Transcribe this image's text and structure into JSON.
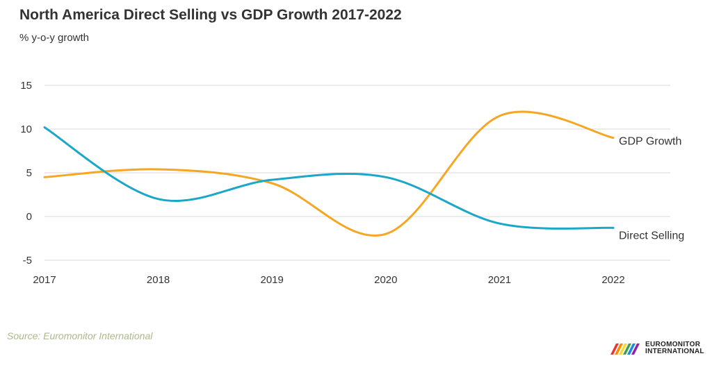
{
  "chart_data": {
    "type": "line",
    "title": "North America Direct Selling vs GDP Growth 2017-2022",
    "subtitle": "% y-o-y growth",
    "xlabel": "",
    "ylabel": "",
    "categories": [
      "2017",
      "2018",
      "2019",
      "2020",
      "2021",
      "2022"
    ],
    "ylim": [
      -5,
      15
    ],
    "yticks": [
      -5,
      0,
      5,
      10,
      15
    ],
    "grid": true,
    "series": [
      {
        "name": "GDP Growth",
        "color": "#f5a623",
        "values": [
          4.5,
          5.4,
          3.8,
          -2.0,
          11.5,
          9.0
        ]
      },
      {
        "name": "Direct Selling",
        "color": "#1aa7c9",
        "values": [
          10.2,
          2.0,
          4.2,
          4.5,
          -0.8,
          -1.3
        ]
      }
    ]
  },
  "footer": {
    "source": "Source: Euromonitor International",
    "logo_line1": "EUROMONITOR",
    "logo_line2": "INTERNATIONAL"
  }
}
